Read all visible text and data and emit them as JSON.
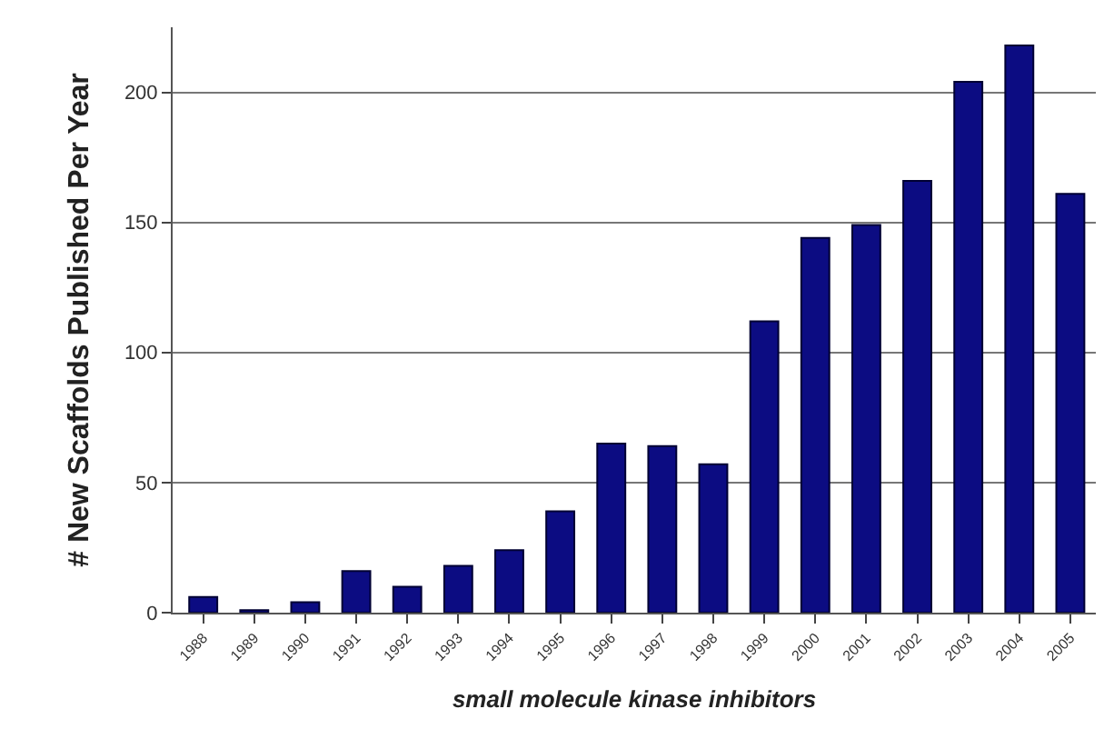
{
  "chart_data": {
    "type": "bar",
    "xlabel": "small molecule kinase inhibitors",
    "ylabel": "# New Scaffolds Published Per Year",
    "categories": [
      "1988",
      "1989",
      "1990",
      "1991",
      "1992",
      "1993",
      "1994",
      "1995",
      "1996",
      "1997",
      "1998",
      "1999",
      "2000",
      "2001",
      "2002",
      "2003",
      "2004",
      "2005"
    ],
    "values": [
      6,
      1,
      4,
      16,
      10,
      18,
      24,
      39,
      65,
      64,
      57,
      112,
      144,
      149,
      166,
      204,
      218,
      161
    ],
    "color": "#0c0c82",
    "ylim": [
      0,
      225
    ],
    "yticks": [
      0,
      50,
      100,
      150,
      200
    ],
    "grid": "y"
  }
}
